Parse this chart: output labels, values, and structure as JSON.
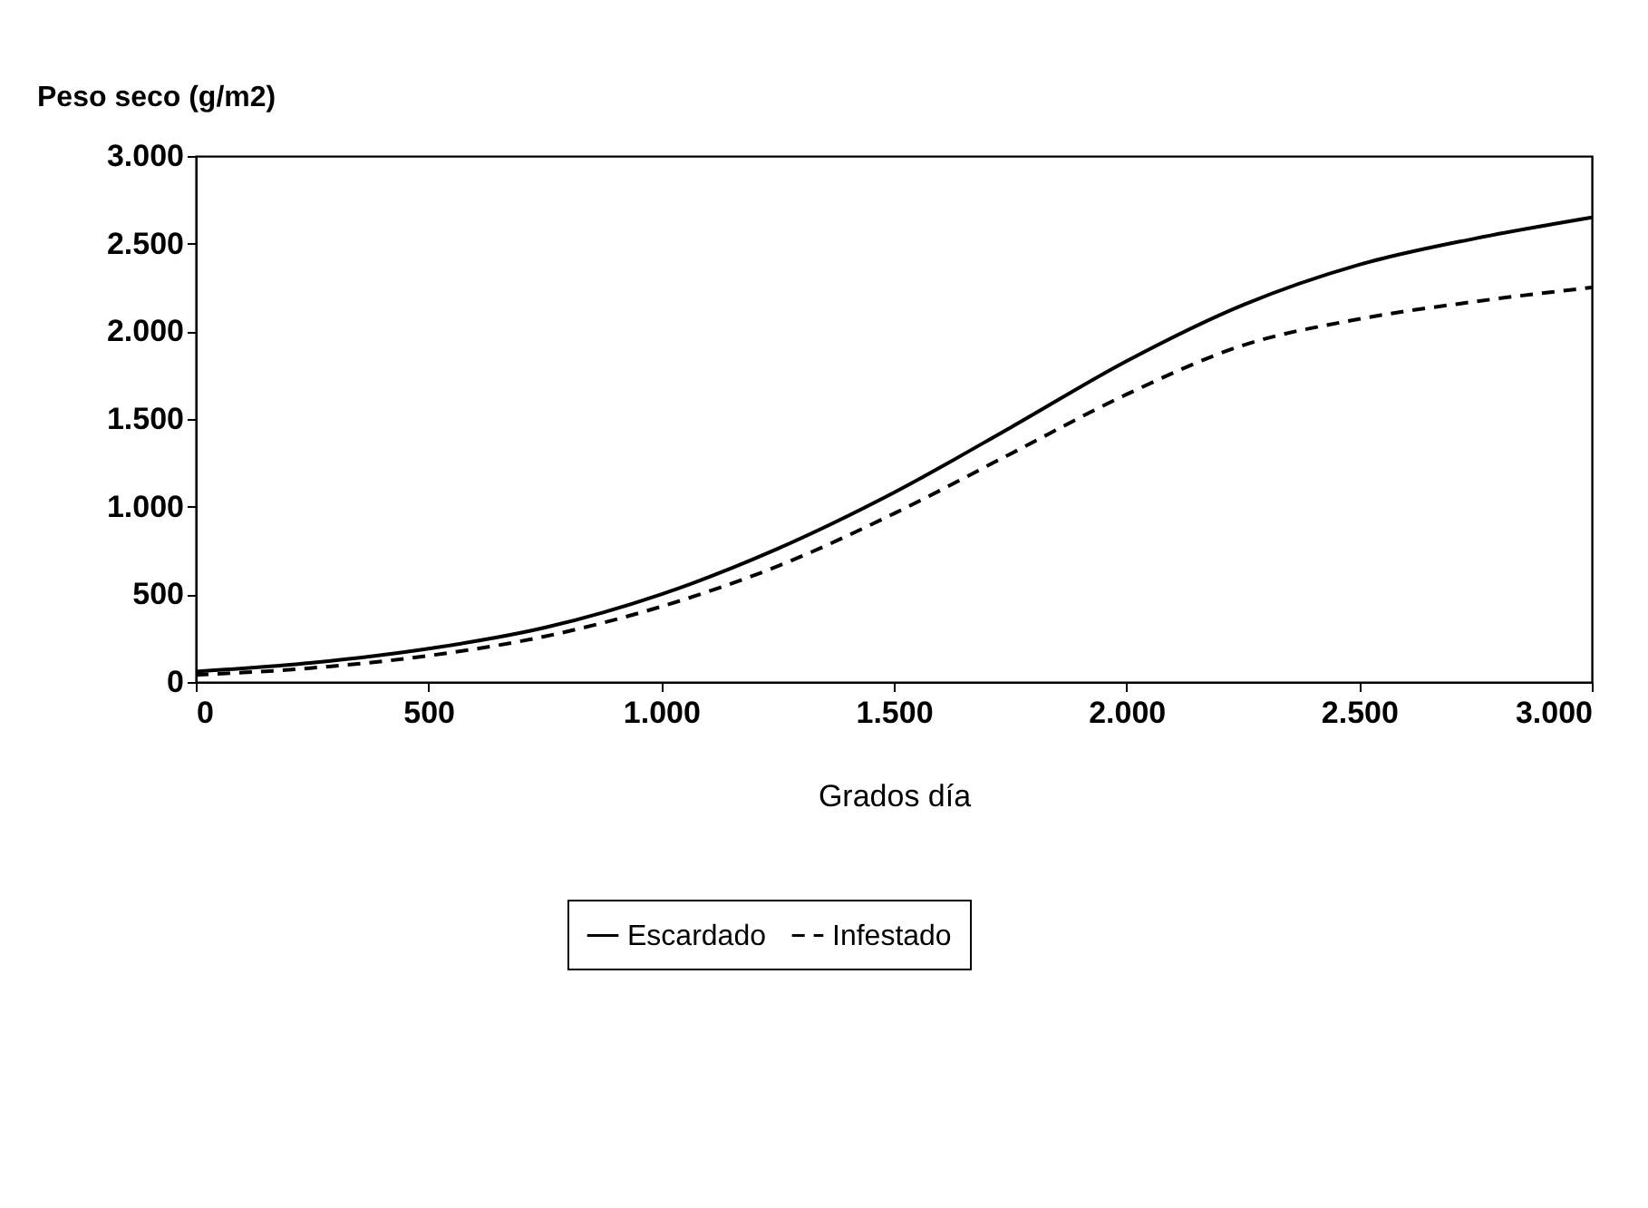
{
  "chart_data": {
    "type": "line",
    "xlabel": "Grados día",
    "ylabel": "Peso seco (g/m2)",
    "x": [
      0,
      250,
      500,
      750,
      1000,
      1250,
      1500,
      1750,
      2000,
      2250,
      2500,
      2750,
      3000
    ],
    "series": [
      {
        "name": "Escardado",
        "color": "#000000",
        "line_style": "solid",
        "values": [
          60,
          110,
          190,
          310,
          500,
          760,
          1080,
          1450,
          1830,
          2150,
          2380,
          2530,
          2650
        ]
      },
      {
        "name": "Infestado",
        "color": "#000000",
        "line_style": "dashed",
        "values": [
          40,
          80,
          150,
          260,
          430,
          660,
          960,
          1300,
          1640,
          1920,
          2070,
          2170,
          2250
        ]
      }
    ],
    "xlim": [
      0,
      3000
    ],
    "xticks": [
      0,
      500,
      {
        "value": 1000,
        "label": "1.000"
      },
      {
        "value": 1500,
        "label": "1.500"
      },
      {
        "value": 2000,
        "label": "2.000"
      },
      {
        "value": 2500,
        "label": "2.500"
      },
      {
        "value": 3000,
        "label": "3.000"
      }
    ],
    "ylim": [
      0,
      3000
    ],
    "yticks": [
      0,
      500,
      {
        "value": 1000,
        "label": "1.000"
      },
      {
        "value": 1500,
        "label": "1.500"
      },
      {
        "value": 2000,
        "label": "2.000"
      },
      {
        "value": 2500,
        "label": "2.500"
      },
      {
        "value": 3000,
        "label": "3.000"
      }
    ],
    "grid": false,
    "legend": "bottom",
    "marker": "none"
  }
}
